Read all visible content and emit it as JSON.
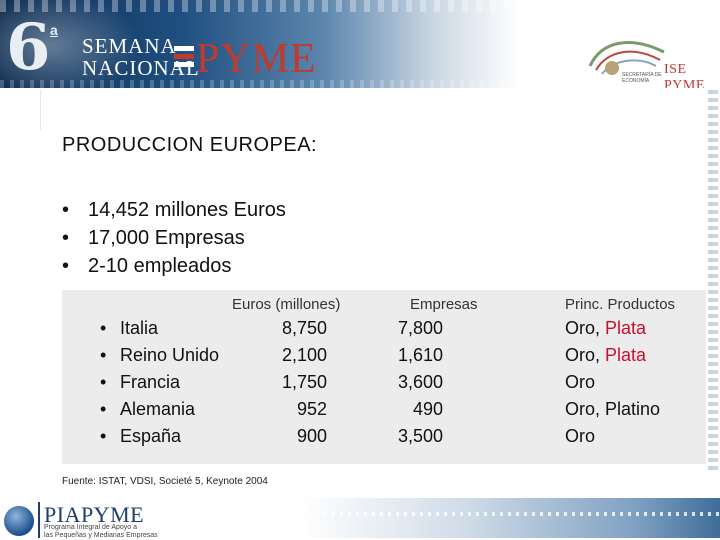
{
  "header": {
    "edition_number": "6",
    "edition_suffix": "a",
    "event_line1": "SEMANA",
    "event_line2": "NACIONAL",
    "event_brand": "PYME",
    "secretaria_text": "SECRETARÍA DE ECONOMÍA",
    "isi_text": "ISE PYME"
  },
  "slide": {
    "title": "PRODUCCION EUROPEA:",
    "bullets": [
      "14,452 millones Euros",
      "17,000 Empresas",
      "2-10 empleados"
    ]
  },
  "table": {
    "headers": {
      "euros": "Euros (millones)",
      "empresas": "Empresas",
      "productos": "Princ. Productos"
    },
    "rows": [
      {
        "country": "Italia",
        "euros": "8,750",
        "empresas": "7,800",
        "product_a": "Oro,",
        "product_b": "Plata"
      },
      {
        "country": "Reino Unido",
        "euros": "2,100",
        "empresas": "1,610",
        "product_a": "Oro,",
        "product_b": "Plata"
      },
      {
        "country": "Francia",
        "euros": "1,750",
        "empresas": "3,600",
        "product_a": "Oro",
        "product_b": ""
      },
      {
        "country": "Alemania",
        "euros": "952",
        "empresas": "490",
        "product_a": "Oro, Platino",
        "product_b": ""
      },
      {
        "country": "España",
        "euros": "900",
        "empresas": "3,500",
        "product_a": "Oro",
        "product_b": ""
      }
    ]
  },
  "source": "Fuente: ISTAT, VDSI, Societé 5, Keynote 2004",
  "footer": {
    "brand": "PIAPYME",
    "subtitle_line1": "Programa Integral de Apoyo a",
    "subtitle_line2": "las Pequeñas y Medianas Empresas"
  },
  "colors": {
    "accent_red": "#c8102e",
    "brand_blue": "#1f3e6e",
    "table_bg": "#ececec"
  }
}
